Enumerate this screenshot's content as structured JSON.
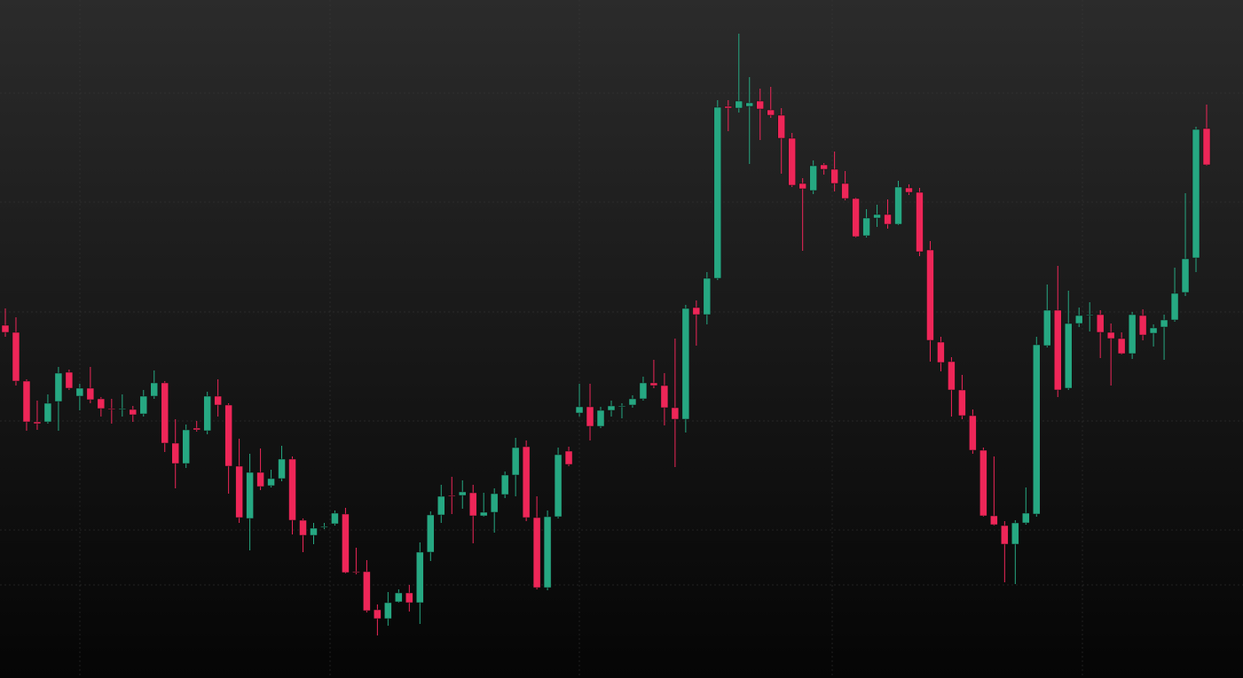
{
  "chart_data": {
    "type": "candlestick",
    "open": [
      398,
      390,
      335,
      289,
      289,
      312,
      345,
      318,
      327,
      315,
      304,
      303,
      303,
      298,
      318,
      333,
      265,
      242,
      282,
      279,
      318,
      308,
      239,
      180,
      232,
      217,
      225,
      247,
      178,
      161,
      170,
      174,
      185,
      120,
      120,
      77,
      67,
      86,
      96,
      85,
      142,
      184,
      206,
      206,
      209,
      183,
      187,
      207,
      229,
      261,
      181,
      102,
      182,
      256,
      299,
      306,
      284,
      302,
      306,
      308,
      315,
      333,
      330,
      305,
      292,
      418,
      410,
      451,
      645,
      643,
      645,
      651,
      641,
      635,
      609,
      558,
      550,
      579,
      574,
      558,
      541,
      499,
      519,
      523,
      512,
      553,
      548,
      483,
      379,
      357,
      325,
      296,
      257,
      183,
      172,
      151,
      175,
      185,
      375,
      415,
      327,
      400,
      409,
      410,
      390,
      383,
      366,
      409,
      389,
      396,
      404,
      435,
      474,
      620
    ],
    "high": [
      417,
      407,
      337,
      313,
      320,
      351,
      348,
      332,
      351,
      317,
      315,
      320,
      307,
      325,
      347,
      335,
      292,
      286,
      290,
      323,
      337,
      310,
      270,
      253,
      259,
      235,
      262,
      250,
      180,
      175,
      175,
      189,
      192,
      147,
      133,
      83,
      97,
      100,
      105,
      153,
      188,
      218,
      227,
      223,
      218,
      209,
      214,
      233,
      271,
      268,
      205,
      189,
      260,
      261,
      332,
      332,
      306,
      313,
      310,
      319,
      340,
      359,
      344,
      383,
      421,
      426,
      458,
      652,
      652,
      727,
      678,
      665,
      667,
      643,
      615,
      564,
      584,
      581,
      594,
      572,
      542,
      529,
      534,
      540,
      561,
      557,
      553,
      493,
      385,
      362,
      342,
      303,
      260,
      250,
      177,
      178,
      215,
      385,
      444,
      465,
      437,
      418,
      424,
      415,
      400,
      390,
      413,
      416,
      399,
      410,
      463,
      547,
      622,
      647
    ],
    "low": [
      385,
      330,
      279,
      280,
      287,
      279,
      325,
      302,
      310,
      295,
      287,
      295,
      289,
      295,
      315,
      255,
      214,
      237,
      278,
      275,
      295,
      208,
      175,
      144,
      212,
      215,
      222,
      162,
      142,
      151,
      168,
      172,
      118,
      117,
      74,
      48,
      59,
      85,
      75,
      61,
      132,
      175,
      185,
      191,
      152,
      182,
      164,
      203,
      205,
      177,
      100,
      99,
      180,
      239,
      295,
      268,
      282,
      295,
      293,
      305,
      313,
      327,
      285,
      238,
      277,
      375,
      399,
      449,
      617,
      638,
      580,
      607,
      632,
      569,
      554,
      482,
      546,
      568,
      549,
      539,
      497,
      497,
      509,
      507,
      511,
      545,
      476,
      357,
      346,
      295,
      292,
      253,
      182,
      172,
      108,
      106,
      173,
      182,
      373,
      317,
      325,
      396,
      391,
      361,
      330,
      365,
      360,
      381,
      374,
      359,
      402,
      431,
      458,
      578
    ],
    "close": [
      390,
      335,
      289,
      287,
      310,
      344,
      327,
      327,
      314,
      304,
      303,
      304,
      297,
      318,
      333,
      265,
      242,
      280,
      280,
      318,
      308,
      239,
      181,
      232,
      216,
      225,
      247,
      178,
      161,
      169,
      171,
      186,
      119,
      119,
      76,
      67,
      85,
      96,
      85,
      142,
      184,
      205,
      205,
      210,
      183,
      187,
      208,
      229,
      260,
      181,
      102,
      182,
      252,
      241,
      306,
      284,
      302,
      307,
      307,
      315,
      333,
      330,
      305,
      292,
      417,
      410,
      451,
      644,
      643,
      651,
      649,
      642,
      635,
      609,
      556,
      552,
      578,
      574,
      558,
      541,
      498,
      519,
      523,
      512,
      554,
      548,
      481,
      381,
      356,
      325,
      296,
      257,
      183,
      173,
      151,
      175,
      186,
      376,
      415,
      325,
      400,
      409,
      410,
      390,
      383,
      366,
      410,
      387,
      395,
      404,
      434,
      473,
      619,
      579
    ],
    "up_color": "#26a882",
    "down_color": "#ee2658",
    "ylim": [
      0,
      765
    ]
  }
}
